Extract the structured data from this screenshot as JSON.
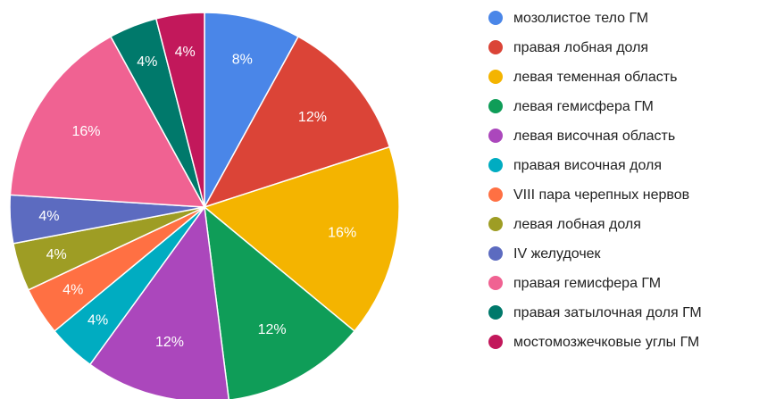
{
  "chart_data": {
    "type": "pie",
    "legend_position": "right",
    "slices": [
      {
        "label": "мозолистое тело ГМ",
        "value": 8,
        "display": "8%",
        "color": "#4a86e8"
      },
      {
        "label": "правая лобная доля",
        "value": 12,
        "display": "12%",
        "color": "#db4437"
      },
      {
        "label": "левая теменная область",
        "value": 16,
        "display": "16%",
        "color": "#f4b400"
      },
      {
        "label": "левая гемисфера ГМ",
        "value": 12,
        "display": "12%",
        "color": "#0f9d58"
      },
      {
        "label": "левая височная область",
        "value": 12,
        "display": "12%",
        "color": "#ab47bc"
      },
      {
        "label": "правая височная доля",
        "value": 4,
        "display": "4%",
        "color": "#00acc1"
      },
      {
        "label": "VIII пара черепных нервов",
        "value": 4,
        "display": "4%",
        "color": "#ff7043"
      },
      {
        "label": "левая лобная доля",
        "value": 4,
        "display": "4%",
        "color": "#9e9d24"
      },
      {
        "label": "IV желудочек",
        "value": 4,
        "display": "4%",
        "color": "#5c6bc0"
      },
      {
        "label": "правая гемисфера ГМ",
        "value": 16,
        "display": "16%",
        "color": "#f06292"
      },
      {
        "label": "правая затылочная доля ГМ",
        "value": 4,
        "display": "4%",
        "color": "#00796b"
      },
      {
        "label": "мостомозжечковые углы ГМ",
        "value": 4,
        "display": "4%",
        "color": "#c2185b"
      }
    ]
  }
}
